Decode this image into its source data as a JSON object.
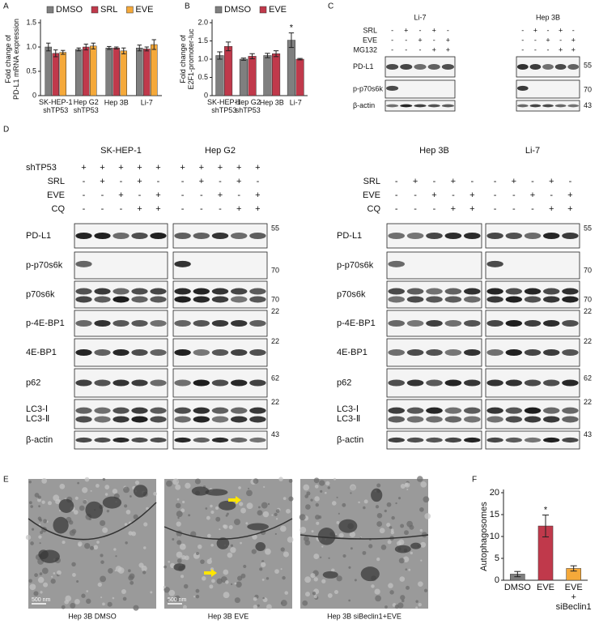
{
  "chart_data": [
    {
      "panel": "A",
      "type": "bar",
      "ylabel": "Fold change of\nPD-L1 mRNA expression",
      "categories": [
        "SK-HEP-1\nshTP53",
        "Hep G2\nshTP53",
        "Hep 3B",
        "Li-7"
      ],
      "series": [
        {
          "name": "DMSO",
          "color": "#7f7f7f",
          "values": [
            1.0,
            0.95,
            0.98,
            0.98
          ],
          "errors": [
            0.08,
            0.03,
            0.03,
            0.06
          ]
        },
        {
          "name": "SRL",
          "color": "#c0394b",
          "values": [
            0.87,
            1.0,
            0.98,
            0.96
          ],
          "errors": [
            0.07,
            0.06,
            0.02,
            0.04
          ]
        },
        {
          "name": "EVE",
          "color": "#f5a93a",
          "values": [
            0.89,
            1.02,
            0.92,
            1.05
          ],
          "errors": [
            0.04,
            0.06,
            0.06,
            0.1
          ]
        }
      ],
      "ylim": [
        0,
        1.5
      ],
      "yticks": [
        0,
        0.5,
        {
          "value": 1,
          "label": "1.0"
        },
        1.5
      ]
    },
    {
      "panel": "B",
      "type": "bar",
      "ylabel": "Fold change of\nE2F1-promoter-luc",
      "categories": [
        "SK-HEP-1\nshTP53",
        "Hep G2\nshTP53",
        "Hep 3B",
        "Li-7"
      ],
      "series": [
        {
          "name": "DMSO",
          "color": "#7f7f7f",
          "values": [
            1.1,
            1.0,
            1.1,
            1.52
          ],
          "errors": [
            0.1,
            0.03,
            0.06,
            0.2
          ]
        },
        {
          "name": "EVE",
          "color": "#c0394b",
          "values": [
            1.35,
            1.08,
            1.15,
            1.0
          ],
          "errors": [
            0.12,
            0.07,
            0.08,
            0.02
          ]
        }
      ],
      "ylim": [
        0,
        2
      ],
      "yticks": [
        0,
        0.5,
        {
          "value": 1,
          "label": "1.0"
        },
        1.5,
        {
          "value": 2,
          "label": "2.0"
        }
      ],
      "annotations": [
        "*"
      ]
    },
    {
      "panel": "F",
      "type": "bar",
      "ylabel": "Autophagosomes",
      "categories": [
        "DMSO",
        "EVE",
        "EVE\n+\nsiBeclin1"
      ],
      "values": [
        1.4,
        12.4,
        2.7
      ],
      "errors": [
        0.6,
        2.5,
        0.6
      ],
      "colors": [
        "#7f7f7f",
        "#c0394b",
        "#f5a93a"
      ],
      "ylim": [
        0,
        20
      ],
      "yticks": [
        0,
        5,
        10,
        15,
        20
      ],
      "annotations": [
        "*"
      ]
    }
  ],
  "blot_c": {
    "panel": "C",
    "groups": [
      "Li-7",
      "Hep 3B"
    ],
    "conditions": [
      {
        "name": "SRL",
        "signs": [
          "-",
          "+",
          "-",
          "+",
          "-"
        ]
      },
      {
        "name": "EVE",
        "signs": [
          "-",
          "-",
          "+",
          "-",
          "+"
        ]
      },
      {
        "name": "MG132",
        "signs": [
          "-",
          "-",
          "-",
          "+",
          "+"
        ]
      }
    ],
    "rows": [
      {
        "name": "PD-L1",
        "mw": 55
      },
      {
        "name": "p-p70s6k",
        "mw": 70
      },
      {
        "name": "β-actin",
        "mw": 43
      }
    ]
  },
  "blot_d": {
    "panel": "D",
    "groups": [
      "SK-HEP-1",
      "Hep G2",
      "Hep 3B",
      "Li-7"
    ],
    "shTP53": {
      "name": "shTP53",
      "signs": [
        "+",
        "+",
        "+",
        "+",
        "+"
      ]
    },
    "conditions": [
      {
        "name": "SRL",
        "signs": [
          "-",
          "+",
          "-",
          "+",
          "-"
        ]
      },
      {
        "name": "EVE",
        "signs": [
          "-",
          "-",
          "+",
          "-",
          "+"
        ]
      },
      {
        "name": "CQ",
        "signs": [
          "-",
          "-",
          "-",
          "+",
          "+"
        ]
      }
    ],
    "rows": [
      {
        "name": "PD-L1",
        "mw": 55
      },
      {
        "name": "p-p70s6k",
        "mw": 70
      },
      {
        "name": "p70s6k",
        "mw": 70
      },
      {
        "name": "p-4E-BP1",
        "mw": 22
      },
      {
        "name": "4E-BP1",
        "mw": 22
      },
      {
        "name": "p62",
        "mw": 62
      },
      {
        "name": "LC3-Ⅰ\nLC3-Ⅱ",
        "mw": 22
      },
      {
        "name": "β-actin",
        "mw": 43
      }
    ]
  },
  "em": {
    "panel": "E",
    "scale_bar": "500 nm",
    "captions": [
      "Hep 3B DMSO",
      "Hep 3B EVE",
      "Hep 3B siBeclin1+EVE"
    ]
  }
}
